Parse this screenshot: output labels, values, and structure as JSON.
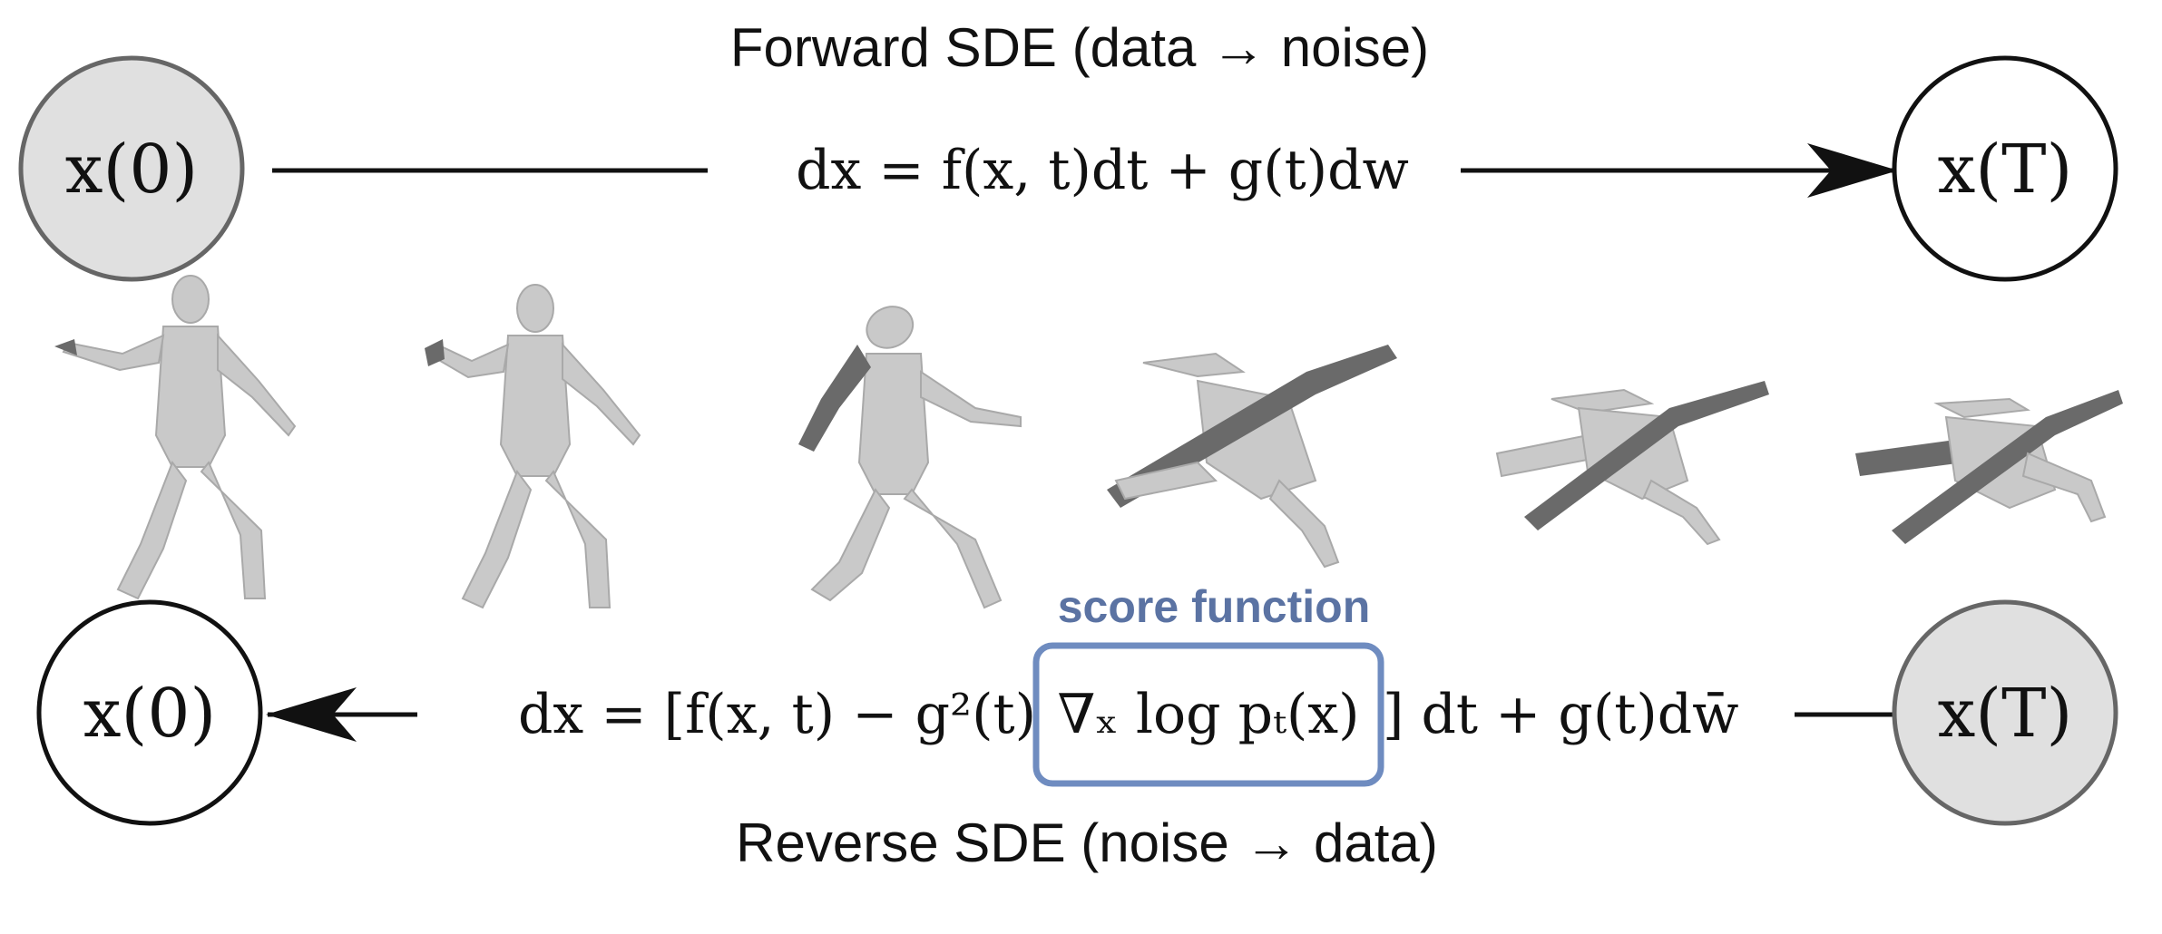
{
  "forward": {
    "title": "Forward SDE (data → noise)",
    "start_node": "x(0)",
    "end_node": "x(T)",
    "equation": "dx = f(x, t)dt + g(t)dw"
  },
  "reverse": {
    "title": "Reverse SDE (noise → data)",
    "start_node": "x(T)",
    "end_node": "x(0)",
    "equation_prefix": "dx = [f(x, t) − g²(t) ",
    "equation_score": "∇ₓ log pₜ(x)",
    "equation_suffix": "] dt + g(t)dw̄",
    "score_label": "score function"
  },
  "colors": {
    "filled_node": "#e0e0e0",
    "score_box": "#6f8cc0",
    "score_label": "#5b73a3"
  },
  "mesh_sequence": [
    {
      "name": "human-mesh-clean"
    },
    {
      "name": "human-mesh-slight-noise"
    },
    {
      "name": "human-mesh-moderate-noise"
    },
    {
      "name": "human-mesh-heavy-noise"
    },
    {
      "name": "human-mesh-very-heavy-noise"
    },
    {
      "name": "human-mesh-pure-noise"
    }
  ]
}
